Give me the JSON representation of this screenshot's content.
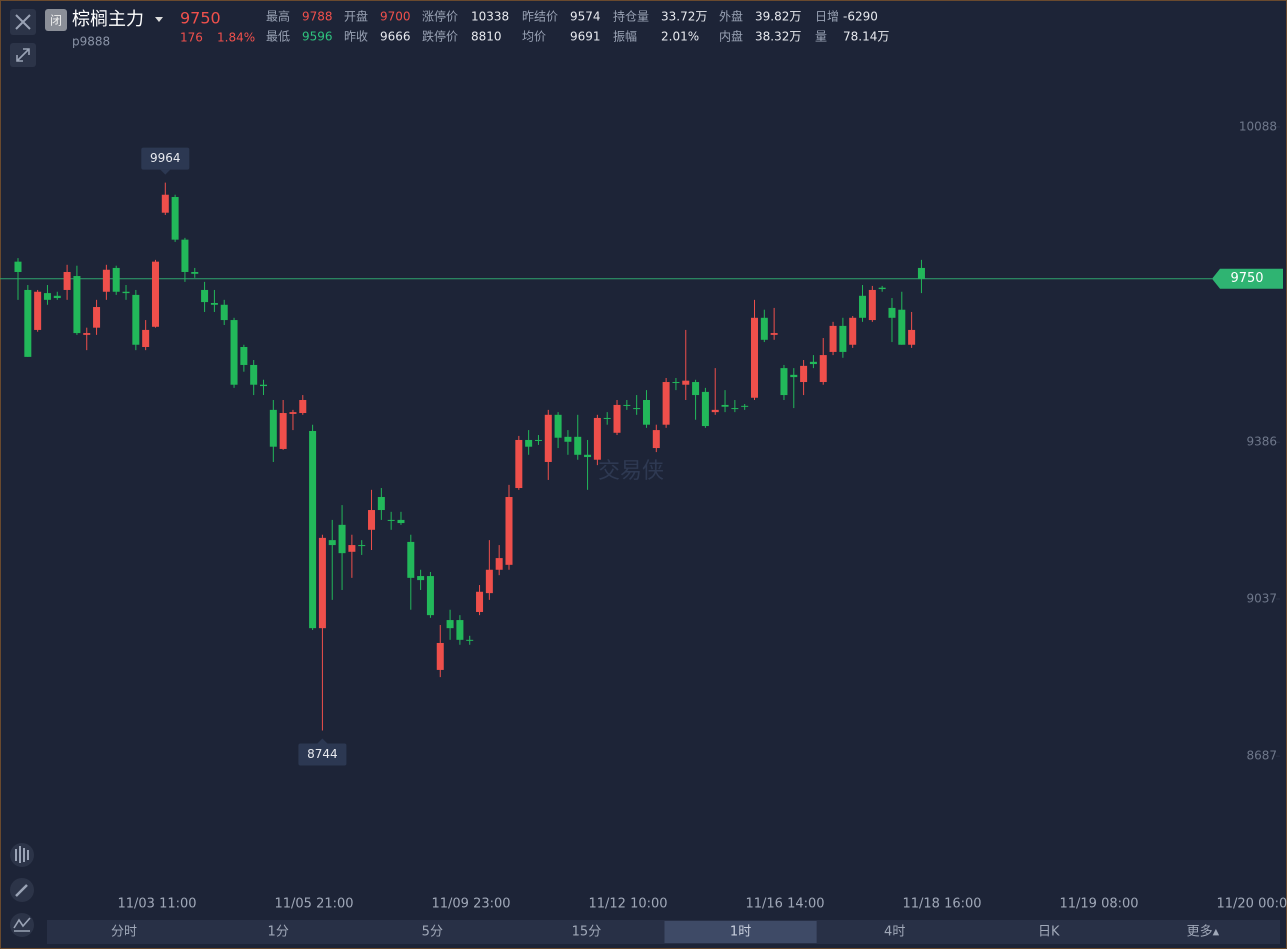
{
  "header": {
    "badge": "闭",
    "name": "棕榈主力",
    "code": "p9888",
    "last": "9750",
    "change": "176",
    "change_pct": "1.84%"
  },
  "stats": [
    [
      {
        "label": "最高",
        "value": "9788",
        "color": "#f0504c"
      },
      {
        "label": "开盘",
        "value": "9700",
        "color": "#f0504c"
      },
      {
        "label": "涨停价",
        "value": "10338"
      },
      {
        "label": "昨结价",
        "value": "9574"
      },
      {
        "label": "持仓量",
        "value": "33.72万"
      },
      {
        "label": "外盘",
        "value": "39.82万"
      },
      {
        "label": "日增",
        "value": "-6290"
      }
    ],
    [
      {
        "label": "最低",
        "value": "9596",
        "color": "#2ec27e"
      },
      {
        "label": "昨收",
        "value": "9666"
      },
      {
        "label": "跌停价",
        "value": "8810"
      },
      {
        "label": "均价",
        "value": "9691"
      },
      {
        "label": "振幅",
        "value": "2.01%"
      },
      {
        "label": "内盘",
        "value": "38.32万"
      },
      {
        "label": "量",
        "value": "78.14万"
      }
    ]
  ],
  "watermark": "交易侠",
  "tabs": [
    "分时",
    "1分",
    "5分",
    "15分",
    "1时",
    "4时",
    "日K",
    "更多▴"
  ],
  "active_tab": 4,
  "chart_data": {
    "type": "candlestick",
    "open": [
      9788,
      9725,
      9636,
      9718,
      9712,
      9725,
      9756,
      9625,
      9641,
      9721,
      9774,
      9721,
      9714,
      9598,
      9643,
      9897,
      9932,
      9837,
      9765,
      9725,
      9696,
      9692,
      9658,
      9598,
      9558,
      9514,
      9458,
      9371,
      9449,
      9451,
      9411,
      8972,
      9168,
      9202,
      9142,
      9157,
      9191,
      9264,
      9213,
      9213,
      9164,
      9088,
      9088,
      8879,
      8990,
      8990,
      8946,
      9008,
      9050,
      9102,
      9113,
      9284,
      9391,
      9391,
      9342,
      9447,
      9398,
      9398,
      9358,
      9347,
      9440,
      9407,
      9469,
      9462,
      9480,
      9373,
      9425,
      9520,
      9514,
      9520,
      9498,
      9453,
      9469,
      9462,
      9467,
      9485,
      9663,
      9625,
      9551,
      9536,
      9520,
      9565,
      9520,
      9587,
      9645,
      9603,
      9712,
      9658,
      9730,
      9685,
      9681,
      9603,
      9774
    ],
    "high": [
      9796,
      9736,
      9725,
      9736,
      9721,
      9781,
      9779,
      9641,
      9703,
      9781,
      9779,
      9736,
      9725,
      9658,
      9792,
      9964,
      9937,
      9841,
      9774,
      9743,
      9725,
      9703,
      9663,
      9603,
      9569,
      9525,
      9480,
      9480,
      9458,
      9491,
      9425,
      9180,
      9213,
      9246,
      9180,
      9168,
      9280,
      9284,
      9231,
      9231,
      9180,
      9102,
      9097,
      8979,
      9013,
      9001,
      8955,
      9068,
      9168,
      9157,
      9291,
      9400,
      9413,
      9402,
      9458,
      9453,
      9413,
      9447,
      9391,
      9447,
      9453,
      9480,
      9480,
      9491,
      9502,
      9425,
      9529,
      9529,
      9636,
      9525,
      9507,
      9551,
      9502,
      9480,
      9471,
      9703,
      9681,
      9685,
      9558,
      9551,
      9569,
      9580,
      9618,
      9654,
      9663,
      9667,
      9736,
      9734,
      9734,
      9707,
      9721,
      9676,
      9792
    ],
    "low": [
      9703,
      9576,
      9632,
      9692,
      9703,
      9703,
      9625,
      9591,
      9625,
      9703,
      9714,
      9703,
      9591,
      9591,
      9641,
      9892,
      9832,
      9743,
      9752,
      9676,
      9676,
      9647,
      9507,
      9543,
      9491,
      9491,
      9342,
      9369,
      9413,
      9447,
      8968,
      8744,
      9035,
      9057,
      9084,
      9135,
      9146,
      9213,
      9191,
      9202,
      9013,
      9057,
      8995,
      8863,
      8946,
      8935,
      8935,
      9001,
      9035,
      9090,
      9102,
      9280,
      9358,
      9380,
      9302,
      9373,
      9358,
      9347,
      9280,
      9335,
      9425,
      9402,
      9458,
      9447,
      9418,
      9364,
      9418,
      9502,
      9480,
      9436,
      9418,
      9447,
      9453,
      9453,
      9458,
      9480,
      9609,
      9614,
      9480,
      9462,
      9491,
      9551,
      9514,
      9580,
      9574,
      9596,
      9654,
      9654,
      9721,
      9609,
      9603,
      9596,
      9718
    ],
    "close": [
      9765,
      9576,
      9721,
      9703,
      9707,
      9765,
      9629,
      9629,
      9687,
      9770,
      9721,
      9718,
      9603,
      9636,
      9788,
      9937,
      9837,
      9765,
      9761,
      9698,
      9692,
      9658,
      9514,
      9558,
      9514,
      9511,
      9376,
      9451,
      9453,
      9480,
      8972,
      9173,
      9157,
      9139,
      9157,
      9155,
      9235,
      9235,
      9211,
      9206,
      9084,
      9079,
      9001,
      8939,
      8972,
      8946,
      8944,
      9053,
      9102,
      9128,
      9264,
      9391,
      9376,
      9389,
      9447,
      9396,
      9387,
      9358,
      9353,
      9440,
      9438,
      9469,
      9467,
      9460,
      9425,
      9413,
      9520,
      9518,
      9523,
      9491,
      9422,
      9458,
      9465,
      9460,
      9465,
      9663,
      9614,
      9629,
      9491,
      9531,
      9556,
      9560,
      9580,
      9645,
      9587,
      9663,
      9663,
      9725,
      9727,
      9663,
      9603,
      9636,
      9750
    ],
    "up_color": "#ee4f4b",
    "down_color": "#22b85a",
    "ylim": [
      8389,
      10237
    ],
    "yticks": [
      8687,
      9037,
      9386,
      10088
    ],
    "x_labels": [
      "11/03 11:00",
      "11/05 21:00",
      "11/09 23:00",
      "11/12 10:00",
      "11/16 14:00",
      "11/18 16:00",
      "11/19 08:00",
      "11/20 00:00"
    ],
    "last_price": 9750,
    "max_label": 9964,
    "min_label": 8744
  }
}
